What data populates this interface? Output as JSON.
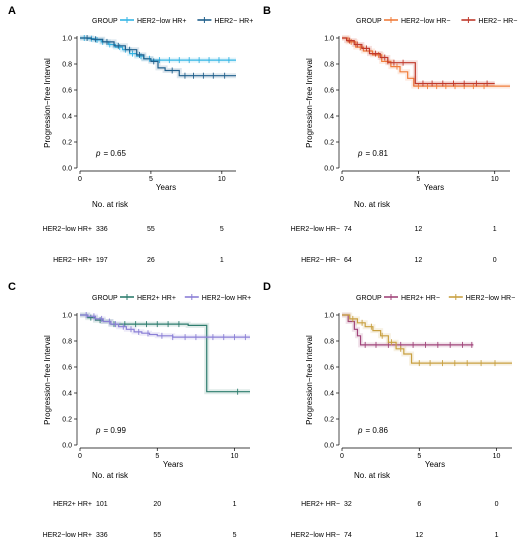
{
  "chart_data": [
    {
      "type": "line",
      "panel_label": "A",
      "legend_title": "GROUP",
      "series": [
        {
          "name": "HER2−low HR+",
          "color": "#33b5e5",
          "steps": [
            [
              0,
              1.0
            ],
            [
              0.5,
              0.995
            ],
            [
              1,
              0.985
            ],
            [
              1.5,
              0.97
            ],
            [
              2,
              0.95
            ],
            [
              2.5,
              0.93
            ],
            [
              3,
              0.91
            ],
            [
              3.5,
              0.88
            ],
            [
              4,
              0.86
            ],
            [
              4.5,
              0.84
            ],
            [
              5,
              0.83
            ],
            [
              11,
              0.83
            ]
          ],
          "censors": [
            0.3,
            0.8,
            1.2,
            1.6,
            2.1,
            2.4,
            2.8,
            3.2,
            3.7,
            4.3,
            4.9,
            5.6,
            6.3,
            7.0,
            7.7,
            8.4,
            9.1,
            9.8,
            10.5
          ]
        },
        {
          "name": "HER2− HR+",
          "color": "#1f5f8b",
          "steps": [
            [
              0,
              1.0
            ],
            [
              0.8,
              0.99
            ],
            [
              1.6,
              0.97
            ],
            [
              2.4,
              0.94
            ],
            [
              3.2,
              0.91
            ],
            [
              4,
              0.87
            ],
            [
              4.5,
              0.84
            ],
            [
              5,
              0.82
            ],
            [
              5.5,
              0.77
            ],
            [
              6,
              0.75
            ],
            [
              7,
              0.71
            ],
            [
              11,
              0.71
            ]
          ],
          "censors": [
            0.5,
            1.1,
            1.9,
            2.7,
            3.5,
            4.2,
            5.2,
            6.5,
            7.4,
            8.0,
            8.7,
            9.4,
            10.2
          ]
        }
      ],
      "xlabel": "Years",
      "ylabel": "Progression−free Interval",
      "xlim": [
        0,
        11
      ],
      "ylim": [
        0,
        1.0
      ],
      "x_ticks": [
        0,
        5,
        10
      ],
      "y_ticks": [
        0.0,
        0.2,
        0.4,
        0.6,
        0.8,
        1.0
      ],
      "pvalue_text": "= 0.65",
      "risk_title": "No. at risk",
      "risk_table": [
        {
          "label": "HER2−low HR+",
          "values": [
            "336",
            "55",
            "5"
          ]
        },
        {
          "label": "HER2− HR+",
          "values": [
            "197",
            "26",
            "1"
          ]
        }
      ]
    },
    {
      "type": "line",
      "panel_label": "B",
      "legend_title": "GROUP",
      "series": [
        {
          "name": "HER2−low HR−",
          "color": "#f07c3a",
          "steps": [
            [
              0,
              1.0
            ],
            [
              0.4,
              0.97
            ],
            [
              0.9,
              0.93
            ],
            [
              1.4,
              0.9
            ],
            [
              2,
              0.87
            ],
            [
              2.6,
              0.82
            ],
            [
              3.2,
              0.78
            ],
            [
              3.8,
              0.74
            ],
            [
              4.3,
              0.69
            ],
            [
              4.7,
              0.63
            ],
            [
              11,
              0.63
            ]
          ],
          "censors": [
            0.6,
            1.2,
            1.8,
            2.4,
            3.0,
            3.6,
            5.0,
            5.6,
            6.2,
            6.8,
            7.4,
            8.0,
            8.6,
            9.3
          ]
        },
        {
          "name": "HER2− HR−",
          "color": "#c0392b",
          "steps": [
            [
              0,
              1.0
            ],
            [
              0.3,
              0.98
            ],
            [
              0.8,
              0.95
            ],
            [
              1.3,
              0.92
            ],
            [
              1.8,
              0.88
            ],
            [
              2.5,
              0.85
            ],
            [
              3,
              0.81
            ],
            [
              4.5,
              0.81
            ],
            [
              4.8,
              0.65
            ],
            [
              10,
              0.65
            ]
          ],
          "censors": [
            0.5,
            1.0,
            1.6,
            2.2,
            2.8,
            3.4,
            4.0,
            5.3,
            5.9,
            6.6,
            7.3,
            8.0,
            8.8,
            9.5
          ]
        }
      ],
      "xlabel": "Years",
      "ylabel": "Progression−free Interval",
      "xlim": [
        0,
        11
      ],
      "ylim": [
        0,
        1.0
      ],
      "x_ticks": [
        0,
        5,
        10
      ],
      "y_ticks": [
        0.0,
        0.2,
        0.4,
        0.6,
        0.8,
        1.0
      ],
      "pvalue_text": "= 0.81",
      "risk_title": "No. at risk",
      "risk_table": [
        {
          "label": "HER2−low HR−",
          "values": [
            "74",
            "12",
            "1"
          ]
        },
        {
          "label": "HER2− HR−",
          "values": [
            "64",
            "12",
            "0"
          ]
        }
      ]
    },
    {
      "type": "line",
      "panel_label": "C",
      "legend_title": "GROUP",
      "series": [
        {
          "name": "HER2+ HR+",
          "color": "#2e7d6e",
          "steps": [
            [
              0,
              1.0
            ],
            [
              0.5,
              0.98
            ],
            [
              1,
              0.96
            ],
            [
              1.5,
              0.95
            ],
            [
              2,
              0.93
            ],
            [
              7,
              0.93
            ],
            [
              7,
              0.92
            ],
            [
              8.2,
              0.92
            ],
            [
              8.2,
              0.41
            ],
            [
              11,
              0.41
            ]
          ],
          "censors": [
            0.7,
            1.3,
            2.2,
            2.9,
            3.6,
            4.3,
            5.0,
            5.7,
            6.4,
            10.2
          ]
        },
        {
          "name": "HER2−low HR+",
          "color": "#8a7fd6",
          "steps": [
            [
              0,
              1.0
            ],
            [
              0.5,
              0.99
            ],
            [
              1,
              0.97
            ],
            [
              1.5,
              0.95
            ],
            [
              2,
              0.93
            ],
            [
              2.5,
              0.91
            ],
            [
              3,
              0.89
            ],
            [
              3.5,
              0.87
            ],
            [
              4,
              0.86
            ],
            [
              4.5,
              0.85
            ],
            [
              5,
              0.84
            ],
            [
              6,
              0.83
            ],
            [
              11,
              0.83
            ]
          ],
          "censors": [
            0.4,
            0.9,
            1.4,
            1.9,
            2.3,
            2.8,
            3.3,
            3.8,
            4.4,
            5.3,
            6.0,
            6.8,
            7.5,
            8.6,
            9.3,
            10.0,
            10.7
          ]
        }
      ],
      "xlabel": "Years",
      "ylabel": "Progression−free Interval",
      "xlim": [
        0,
        11
      ],
      "ylim": [
        0,
        1.0
      ],
      "x_ticks": [
        0,
        5,
        10
      ],
      "y_ticks": [
        0.0,
        0.2,
        0.4,
        0.6,
        0.8,
        1.0
      ],
      "pvalue_text": "= 0.99",
      "risk_title": "No. at risk",
      "risk_table": [
        {
          "label": "HER2+ HR+",
          "values": [
            "101",
            "20",
            "1"
          ]
        },
        {
          "label": "HER2−low HR+",
          "values": [
            "336",
            "55",
            "5"
          ]
        }
      ]
    },
    {
      "type": "line",
      "panel_label": "D",
      "legend_title": "GROUP",
      "series": [
        {
          "name": "HER2+ HR−",
          "color": "#a0447a",
          "steps": [
            [
              0,
              1.0
            ],
            [
              0.4,
              0.95
            ],
            [
              0.8,
              0.89
            ],
            [
              1.0,
              0.84
            ],
            [
              1.2,
              0.77
            ],
            [
              8.5,
              0.77
            ]
          ],
          "censors": [
            1.5,
            2.2,
            3.0,
            3.8,
            4.6,
            5.4,
            6.2,
            7.0,
            7.8,
            8.4
          ]
        },
        {
          "name": "HER2−low HR−",
          "color": "#c8a040",
          "steps": [
            [
              0,
              1.0
            ],
            [
              0.5,
              0.97
            ],
            [
              1,
              0.94
            ],
            [
              1.5,
              0.91
            ],
            [
              2,
              0.88
            ],
            [
              2.5,
              0.84
            ],
            [
              3,
              0.79
            ],
            [
              3.5,
              0.74
            ],
            [
              4,
              0.7
            ],
            [
              4.5,
              0.63
            ],
            [
              11,
              0.63
            ]
          ],
          "censors": [
            0.7,
            1.3,
            1.9,
            2.6,
            3.2,
            3.8,
            5.0,
            5.7,
            6.5,
            7.3,
            8.1,
            9.0,
            9.9
          ]
        }
      ],
      "xlabel": "Years",
      "ylabel": "Progression−free Interval",
      "xlim": [
        0,
        11
      ],
      "ylim": [
        0,
        1.0
      ],
      "x_ticks": [
        0,
        5,
        10
      ],
      "y_ticks": [
        0.0,
        0.2,
        0.4,
        0.6,
        0.8,
        1.0
      ],
      "pvalue_text": "= 0.86",
      "risk_title": "No. at risk",
      "risk_table": [
        {
          "label": "HER2+ HR−",
          "values": [
            "32",
            "6",
            "0"
          ]
        },
        {
          "label": "HER2−low HR−",
          "values": [
            "74",
            "12",
            "1"
          ]
        }
      ]
    }
  ]
}
